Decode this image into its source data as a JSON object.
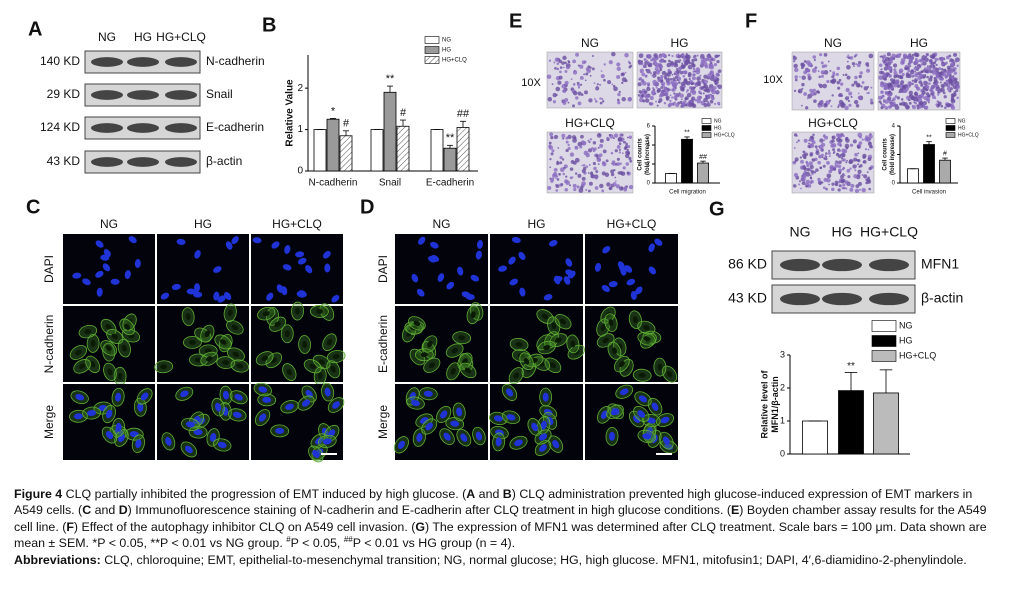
{
  "panels": {
    "A": {
      "label": "A",
      "groups": [
        "NG",
        "HG",
        "HG+CLQ"
      ],
      "rows": [
        {
          "weight": "140 KD",
          "protein": "N-cadherin"
        },
        {
          "weight": "29 KD",
          "protein": "Snail"
        },
        {
          "weight": "124 KD",
          "protein": "E-cadherin"
        },
        {
          "weight": "43 KD",
          "protein": "β-actin"
        }
      ]
    },
    "B": {
      "label": "B",
      "chart": {
        "type": "bar",
        "ylabel": [
          "Relative Value"
        ],
        "categories": [
          "N-cadherin",
          "Snail",
          "E-cadherin"
        ],
        "ylim": [
          0,
          2.8
        ],
        "yticks": [
          0,
          1,
          2
        ],
        "series": [
          {
            "name": "NG",
            "color": "#ffffff",
            "values": [
              1,
              1,
              1
            ],
            "errors": [
              0,
              0,
              0
            ],
            "sig": [
              null,
              null,
              null
            ]
          },
          {
            "name": "HG",
            "color": "#9a9a9a",
            "values": [
              1.25,
              1.9,
              0.55
            ],
            "errors": [
              0.02,
              0.15,
              0.07
            ],
            "sig": [
              "*",
              "**",
              "**"
            ]
          },
          {
            "name": "HG+CLQ",
            "color": "#ffffff",
            "pattern": "hatch",
            "values": [
              0.85,
              1.08,
              1.05
            ],
            "errors": [
              0.12,
              0.15,
              0.15
            ],
            "sig": [
              "#",
              "#",
              "##"
            ]
          }
        ]
      }
    },
    "C": {
      "label": "C",
      "columns": [
        "NG",
        "HG",
        "HG+CLQ"
      ],
      "rows": [
        "DAPI",
        "N-cadherin",
        "Merge"
      ]
    },
    "D": {
      "label": "D",
      "columns": [
        "NG",
        "HG",
        "HG+CLQ"
      ],
      "rows": [
        "DAPI",
        "E-cadherin",
        "Merge"
      ]
    },
    "E": {
      "label": "E",
      "magnification": "10X",
      "groups": [
        "NG",
        "HG",
        "HG+CLQ"
      ],
      "chart": {
        "type": "bar",
        "ylabel": [
          "Cell counts",
          "(fold increase)"
        ],
        "xlabel": "Cell migration",
        "ylim": [
          0,
          6
        ],
        "yticks": [
          0,
          2,
          4,
          6
        ],
        "series": [
          {
            "name": "NG",
            "color": "#ffffff",
            "values": [
              1
            ],
            "errors": [
              0
            ],
            "sig": [
              null
            ]
          },
          {
            "name": "HG",
            "color": "#000000",
            "values": [
              4.6
            ],
            "errors": [
              0.25
            ],
            "sig": [
              "**"
            ]
          },
          {
            "name": "HG+CLQ",
            "color": "#aaaaaa",
            "values": [
              2.1
            ],
            "errors": [
              0.2
            ],
            "sig": [
              "##"
            ]
          }
        ]
      }
    },
    "F": {
      "label": "F",
      "magnification": "10X",
      "groups": [
        "NG",
        "HG",
        "HG+CLQ"
      ],
      "chart": {
        "type": "bar",
        "ylabel": [
          "Cell counts",
          "(fold increase)"
        ],
        "xlabel": "Cell invasion",
        "ylim": [
          0,
          4
        ],
        "yticks": [
          0,
          2,
          4
        ],
        "series": [
          {
            "name": "NG",
            "color": "#ffffff",
            "values": [
              1
            ],
            "errors": [
              0
            ],
            "sig": [
              null
            ]
          },
          {
            "name": "HG",
            "color": "#000000",
            "values": [
              2.7
            ],
            "errors": [
              0.2
            ],
            "sig": [
              "**"
            ]
          },
          {
            "name": "HG+CLQ",
            "color": "#aaaaaa",
            "values": [
              1.6
            ],
            "errors": [
              0.15
            ],
            "sig": [
              "#"
            ]
          }
        ]
      }
    },
    "G": {
      "label": "G",
      "groups": [
        "NG",
        "HG",
        "HG+CLQ"
      ],
      "rows": [
        {
          "weight": "86 KD",
          "protein": "MFN1"
        },
        {
          "weight": "43 KD",
          "protein": "β-actin"
        }
      ],
      "chart": {
        "type": "bar",
        "ylabel": [
          "Relative level of",
          "MFN1/β-actin"
        ],
        "ylim": [
          0,
          3
        ],
        "yticks": [
          0,
          1,
          2,
          3
        ],
        "series": [
          {
            "name": "NG",
            "color": "#ffffff",
            "values": [
              1
            ],
            "errors": [
              0
            ],
            "sig": [
              null
            ]
          },
          {
            "name": "HG",
            "color": "#000000",
            "values": [
              1.92
            ],
            "errors": [
              0.55
            ],
            "sig": [
              "**"
            ]
          },
          {
            "name": "HG+CLQ",
            "color": "#bbbbbb",
            "values": [
              1.85
            ],
            "errors": [
              0.7
            ],
            "sig": [
              null
            ]
          }
        ]
      }
    }
  },
  "caption": [
    [
      {
        "text": "Figure 4",
        "style": "bold"
      },
      {
        "text": " CLQ partially inhibited the progression of EMT induced by high glucose. ("
      },
      {
        "text": "A",
        "style": "bold"
      },
      {
        "text": " and "
      },
      {
        "text": "B",
        "style": "bold"
      },
      {
        "text": ") CLQ administration prevented high glucose-induced expression of EMT markers in A549 cells. ("
      },
      {
        "text": "C",
        "style": "bold"
      },
      {
        "text": " and "
      },
      {
        "text": "D",
        "style": "bold"
      },
      {
        "text": ") Immunofluorescence staining of N-cadherin and E-cadherin after CLQ treatment in high glucose conditions. ("
      },
      {
        "text": "E",
        "style": "bold"
      },
      {
        "text": ") Boyden chamber assay results for the A549 cell line. ("
      },
      {
        "text": "F",
        "style": "bold"
      },
      {
        "text": ") Effect of the autophagy inhibitor CLQ on A549 cell invasion. ("
      },
      {
        "text": "G",
        "style": "bold"
      },
      {
        "text": ") The expression of MFN1 was determined after CLQ treatment. Scale bars = 100 μm. Data shown are mean ± SEM. *P < 0.05, **P < 0.01 vs NG group. "
      },
      {
        "text": "#",
        "style": "sup"
      },
      {
        "text": "P < 0.05, "
      },
      {
        "text": "##",
        "style": "sup"
      },
      {
        "text": "P < 0.01 vs HG group (n = 4)."
      }
    ],
    [
      {
        "text": "Abbreviations:",
        "style": "bold"
      },
      {
        "text": " CLQ, chloroquine; EMT, epithelial-to-mesenchymal transition; NG, normal glucose; HG, high glucose. MFN1, mitofusin1; DAPI, 4′,6-diamidino-2-phenylindole."
      }
    ]
  ]
}
